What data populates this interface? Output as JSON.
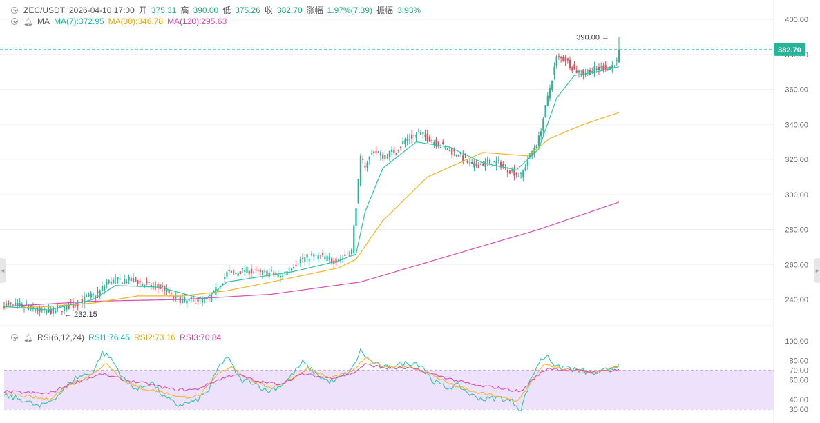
{
  "header": {
    "symbol": "ZEC/USDT",
    "datetime": "2026-04-10 17:00",
    "open_label": "开",
    "open": "375.31",
    "high_label": "高",
    "high": "390.00",
    "low_label": "低",
    "low": "375.26",
    "close_label": "收",
    "close": "382.70",
    "change_label": "涨幅",
    "change": "1.97%(7.39)",
    "amplitude_label": "振幅",
    "amplitude": "3.93%"
  },
  "ma_legend": {
    "label": "MA",
    "ma7": "MA(7):372.95",
    "ma30": "MA(30):346.78",
    "ma120": "MA(120):295.63"
  },
  "rsi_legend": {
    "label": "RSI(6,12,24)",
    "rsi1": "RSI1:76.45",
    "rsi2": "RSI2:73.16",
    "rsi3": "RSI3:70.84"
  },
  "colors": {
    "up": "#26b59a",
    "down": "#e0505e",
    "ma7": "#2fc4a8",
    "ma30": "#f0b429",
    "ma120": "#d54fb0",
    "rsi_band": "#ede1fb",
    "grid": "#f0f0f0",
    "last_price": "#26b59a"
  },
  "chart_data": [
    {
      "type": "candlestick",
      "title": "ZEC/USDT 1h",
      "ylim": [
        225,
        405
      ],
      "y_ticks": [
        "400.00",
        "380.00",
        "360.00",
        "340.00",
        "320.00",
        "300.00",
        "280.00",
        "260.00",
        "240.00"
      ],
      "last_price": 382.7,
      "last_price_label": "382.70",
      "annotations": {
        "high": "390.00",
        "high_value": 390.0,
        "low": "232.15",
        "low_value": 232.15
      },
      "close_path": [
        [
          0,
          237
        ],
        [
          10,
          236
        ],
        [
          18,
          233
        ],
        [
          24,
          234
        ],
        [
          32,
          237
        ],
        [
          37,
          241
        ],
        [
          42,
          243
        ],
        [
          46,
          250
        ],
        [
          52,
          251
        ],
        [
          58,
          251
        ],
        [
          62,
          249
        ],
        [
          68,
          247
        ],
        [
          72,
          246
        ],
        [
          76,
          241
        ],
        [
          82,
          239
        ],
        [
          88,
          240
        ],
        [
          92,
          240
        ],
        [
          96,
          247
        ],
        [
          100,
          255
        ],
        [
          104,
          255
        ],
        [
          108,
          257
        ],
        [
          114,
          255
        ],
        [
          120,
          255
        ],
        [
          124,
          253
        ],
        [
          128,
          258
        ],
        [
          132,
          262
        ],
        [
          136,
          264
        ],
        [
          140,
          265
        ],
        [
          144,
          264
        ],
        [
          148,
          262
        ],
        [
          152,
          264
        ],
        [
          156,
          268
        ],
        [
          160,
          320
        ],
        [
          162,
          317
        ],
        [
          166,
          325
        ],
        [
          170,
          322
        ],
        [
          176,
          325
        ],
        [
          180,
          331
        ],
        [
          186,
          335
        ],
        [
          192,
          331
        ],
        [
          196,
          328
        ],
        [
          200,
          325
        ],
        [
          204,
          323
        ],
        [
          210,
          316
        ],
        [
          216,
          318
        ],
        [
          222,
          318
        ],
        [
          228,
          313
        ],
        [
          232,
          311
        ],
        [
          236,
          322
        ],
        [
          240,
          332
        ],
        [
          244,
          355
        ],
        [
          248,
          378
        ],
        [
          252,
          377
        ],
        [
          256,
          371
        ],
        [
          260,
          369
        ],
        [
          264,
          371
        ],
        [
          268,
          372
        ],
        [
          272,
          373
        ],
        [
          275,
          375.3
        ],
        [
          276,
          382.7
        ]
      ],
      "ma7_path": [
        [
          0,
          236
        ],
        [
          20,
          234
        ],
        [
          40,
          240
        ],
        [
          50,
          248
        ],
        [
          70,
          247
        ],
        [
          90,
          240
        ],
        [
          100,
          250
        ],
        [
          130,
          256
        ],
        [
          150,
          262
        ],
        [
          158,
          266
        ],
        [
          162,
          290
        ],
        [
          170,
          315
        ],
        [
          185,
          330
        ],
        [
          200,
          327
        ],
        [
          215,
          318
        ],
        [
          230,
          314
        ],
        [
          240,
          326
        ],
        [
          248,
          355
        ],
        [
          256,
          368
        ],
        [
          266,
          370
        ],
        [
          276,
          372.95
        ]
      ],
      "ma30_path": [
        [
          0,
          235
        ],
        [
          20,
          236
        ],
        [
          40,
          238
        ],
        [
          60,
          242
        ],
        [
          80,
          242
        ],
        [
          100,
          245
        ],
        [
          120,
          250
        ],
        [
          150,
          258
        ],
        [
          158,
          263
        ],
        [
          170,
          285
        ],
        [
          190,
          310
        ],
        [
          215,
          324
        ],
        [
          235,
          322
        ],
        [
          245,
          332
        ],
        [
          260,
          340
        ],
        [
          276,
          346.78
        ]
      ],
      "ma120_path": [
        [
          0,
          236
        ],
        [
          40,
          239
        ],
        [
          80,
          240
        ],
        [
          120,
          243
        ],
        [
          160,
          250
        ],
        [
          200,
          265
        ],
        [
          240,
          280
        ],
        [
          276,
          295.63
        ]
      ]
    },
    {
      "type": "line",
      "title": "RSI(6,12,24)",
      "ylim": [
        25,
        100
      ],
      "y_ticks": [
        "100.00",
        "80.00",
        "70.00",
        "60.00",
        "40.00",
        "30.00"
      ],
      "band": [
        30,
        70
      ],
      "series": [
        {
          "name": "RSI1",
          "last": 76.45,
          "path": [
            [
              0,
              44
            ],
            [
              8,
              40
            ],
            [
              16,
              32
            ],
            [
              24,
              44
            ],
            [
              32,
              62
            ],
            [
              40,
              68
            ],
            [
              44,
              88
            ],
            [
              48,
              82
            ],
            [
              54,
              60
            ],
            [
              60,
              50
            ],
            [
              66,
              58
            ],
            [
              72,
              42
            ],
            [
              78,
              34
            ],
            [
              86,
              38
            ],
            [
              92,
              50
            ],
            [
              96,
              72
            ],
            [
              100,
              84
            ],
            [
              106,
              60
            ],
            [
              112,
              58
            ],
            [
              118,
              48
            ],
            [
              124,
              54
            ],
            [
              128,
              62
            ],
            [
              134,
              78
            ],
            [
              138,
              70
            ],
            [
              144,
              60
            ],
            [
              148,
              58
            ],
            [
              152,
              64
            ],
            [
              156,
              70
            ],
            [
              160,
              90
            ],
            [
              164,
              80
            ],
            [
              170,
              72
            ],
            [
              178,
              76
            ],
            [
              184,
              78
            ],
            [
              188,
              74
            ],
            [
              192,
              60
            ],
            [
              198,
              52
            ],
            [
              204,
              54
            ],
            [
              210,
              44
            ],
            [
              216,
              40
            ],
            [
              222,
              42
            ],
            [
              228,
              38
            ],
            [
              232,
              30
            ],
            [
              236,
              58
            ],
            [
              240,
              78
            ],
            [
              244,
              86
            ],
            [
              248,
              72
            ],
            [
              252,
              74
            ],
            [
              256,
              70
            ],
            [
              262,
              68
            ],
            [
              266,
              66
            ],
            [
              272,
              72
            ],
            [
              276,
              76.45
            ]
          ]
        },
        {
          "name": "RSI2",
          "last": 73.16,
          "path": [
            [
              0,
              46
            ],
            [
              10,
              43
            ],
            [
              20,
              40
            ],
            [
              30,
              56
            ],
            [
              40,
              66
            ],
            [
              46,
              78
            ],
            [
              52,
              62
            ],
            [
              60,
              52
            ],
            [
              70,
              48
            ],
            [
              80,
              42
            ],
            [
              88,
              44
            ],
            [
              96,
              66
            ],
            [
              102,
              74
            ],
            [
              110,
              60
            ],
            [
              120,
              52
            ],
            [
              130,
              62
            ],
            [
              136,
              72
            ],
            [
              146,
              62
            ],
            [
              156,
              68
            ],
            [
              162,
              82
            ],
            [
              170,
              74
            ],
            [
              180,
              74
            ],
            [
              190,
              68
            ],
            [
              200,
              56
            ],
            [
              210,
              48
            ],
            [
              220,
              44
            ],
            [
              230,
              38
            ],
            [
              236,
              55
            ],
            [
              242,
              76
            ],
            [
              248,
              72
            ],
            [
              256,
              70
            ],
            [
              266,
              68
            ],
            [
              276,
              73.16
            ]
          ]
        },
        {
          "name": "RSI3",
          "last": 70.84,
          "path": [
            [
              0,
              48
            ],
            [
              10,
              47
            ],
            [
              20,
              46
            ],
            [
              30,
              56
            ],
            [
              44,
              66
            ],
            [
              54,
              60
            ],
            [
              64,
              56
            ],
            [
              76,
              50
            ],
            [
              86,
              50
            ],
            [
              96,
              60
            ],
            [
              104,
              66
            ],
            [
              114,
              58
            ],
            [
              124,
              56
            ],
            [
              134,
              66
            ],
            [
              146,
              62
            ],
            [
              156,
              66
            ],
            [
              162,
              76
            ],
            [
              172,
              72
            ],
            [
              182,
              72
            ],
            [
              192,
              66
            ],
            [
              202,
              60
            ],
            [
              212,
              54
            ],
            [
              222,
              52
            ],
            [
              232,
              48
            ],
            [
              238,
              62
            ],
            [
              244,
              72
            ],
            [
              254,
              70
            ],
            [
              266,
              68
            ],
            [
              276,
              70.84
            ]
          ]
        }
      ]
    }
  ]
}
